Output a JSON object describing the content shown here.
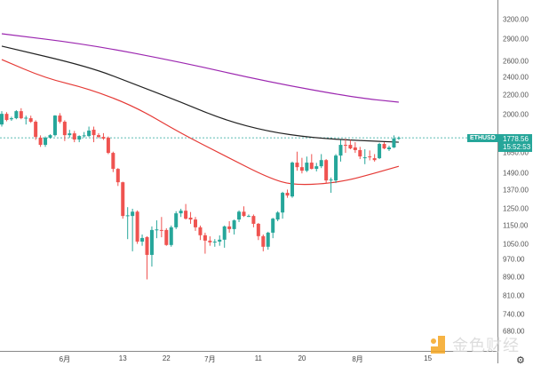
{
  "symbol": "ETHUSD",
  "last_price": "1778.56",
  "countdown": "15:52:53",
  "watermark": "金色财经",
  "settings_icon": "gear-icon",
  "colors": {
    "up": "#26a69a",
    "down": "#ef5350",
    "ma_purple": "#9c27b0",
    "ma_black": "#222222",
    "ma_red": "#e53935",
    "price_line": "#26a69a"
  },
  "chart_data": {
    "type": "candlestick",
    "title": "ETHUSD",
    "y_scale": "log",
    "y_ticks": [
      "3200.00",
      "2900.00",
      "2600.00",
      "2400.00",
      "2200.00",
      "2000.00",
      "1650.00",
      "1490.00",
      "1370.00",
      "1250.00",
      "1150.00",
      "1050.00",
      "970.00",
      "890.00",
      "810.00",
      "740.00",
      "680.00"
    ],
    "x_ticks": [
      {
        "label": "6月",
        "index": 13
      },
      {
        "label": "13",
        "index": 25
      },
      {
        "label": "22",
        "index": 34
      },
      {
        "label": "7月",
        "index": 43
      },
      {
        "label": "11",
        "index": 53
      },
      {
        "label": "20",
        "index": 62
      },
      {
        "label": "8月",
        "index": 73.5
      },
      {
        "label": "15",
        "index": 88
      }
    ],
    "last_price": 1778.56,
    "ohlc": [
      [
        1900,
        2030,
        1880,
        2003
      ],
      [
        2003,
        2020,
        1930,
        1943
      ],
      [
        1950,
        1975,
        1935,
        1960
      ],
      [
        1960,
        2040,
        1950,
        2030
      ],
      [
        2030,
        2060,
        1950,
        1960
      ],
      [
        1960,
        1985,
        1900,
        1965
      ],
      [
        1960,
        1985,
        1915,
        1926
      ],
      [
        1926,
        1940,
        1760,
        1786
      ],
      [
        1779,
        1800,
        1700,
        1717
      ],
      [
        1717,
        1790,
        1700,
        1779
      ],
      [
        1779,
        1810,
        1770,
        1802
      ],
      [
        1802,
        1990,
        1790,
        1986
      ],
      [
        1986,
        2010,
        1910,
        1926
      ],
      [
        1926,
        1940,
        1750,
        1802
      ],
      [
        1802,
        1850,
        1780,
        1818
      ],
      [
        1818,
        1840,
        1740,
        1763
      ],
      [
        1763,
        1800,
        1740,
        1794
      ],
      [
        1794,
        1830,
        1780,
        1800
      ],
      [
        1794,
        1880,
        1785,
        1843
      ],
      [
        1851,
        1880,
        1740,
        1802
      ],
      [
        1802,
        1820,
        1775,
        1786
      ],
      [
        1786,
        1820,
        1760,
        1771
      ],
      [
        1779,
        1790,
        1640,
        1650
      ],
      [
        1650,
        1660,
        1500,
        1524
      ],
      [
        1524,
        1530,
        1400,
        1426
      ],
      [
        1426,
        1430,
        1190,
        1206
      ],
      [
        1206,
        1260,
        1075,
        1210
      ],
      [
        1206,
        1250,
        1012,
        1232
      ],
      [
        1232,
        1240,
        1050,
        1062
      ],
      [
        1062,
        1100,
        1040,
        1081
      ],
      [
        1086,
        1090,
        880,
        994
      ],
      [
        994,
        1145,
        938,
        1125
      ],
      [
        1125,
        1180,
        1080,
        1128
      ],
      [
        1125,
        1200,
        1085,
        1122
      ],
      [
        1125,
        1135,
        1040,
        1044
      ],
      [
        1044,
        1150,
        1035,
        1140
      ],
      [
        1140,
        1235,
        1130,
        1222
      ],
      [
        1222,
        1250,
        1200,
        1238
      ],
      [
        1238,
        1280,
        1185,
        1190
      ],
      [
        1196,
        1230,
        1160,
        1185
      ],
      [
        1185,
        1200,
        1120,
        1140
      ],
      [
        1140,
        1150,
        1070,
        1096
      ],
      [
        1096,
        1110,
        1000,
        1067
      ],
      [
        1067,
        1090,
        1040,
        1058
      ],
      [
        1058,
        1075,
        1035,
        1062
      ],
      [
        1062,
        1095,
        1040,
        1072
      ],
      [
        1072,
        1150,
        1030,
        1145
      ],
      [
        1145,
        1175,
        1110,
        1130
      ],
      [
        1130,
        1185,
        1100,
        1180
      ],
      [
        1185,
        1240,
        1170,
        1232
      ],
      [
        1232,
        1265,
        1200,
        1206
      ],
      [
        1206,
        1215,
        1200,
        1206
      ],
      [
        1206,
        1215,
        1140,
        1160
      ],
      [
        1160,
        1165,
        1070,
        1091
      ],
      [
        1091,
        1100,
        1012,
        1035
      ],
      [
        1035,
        1115,
        1020,
        1110
      ],
      [
        1110,
        1195,
        1080,
        1190
      ],
      [
        1185,
        1235,
        1175,
        1227
      ],
      [
        1227,
        1360,
        1190,
        1353
      ],
      [
        1353,
        1375,
        1320,
        1335
      ],
      [
        1329,
        1580,
        1320,
        1572
      ],
      [
        1572,
        1660,
        1510,
        1537
      ],
      [
        1537,
        1610,
        1490,
        1510
      ],
      [
        1510,
        1620,
        1500,
        1572
      ],
      [
        1572,
        1640,
        1520,
        1524
      ],
      [
        1524,
        1570,
        1505,
        1544
      ],
      [
        1544,
        1640,
        1530,
        1592
      ],
      [
        1592,
        1600,
        1420,
        1439
      ],
      [
        1439,
        1460,
        1353,
        1445
      ],
      [
        1439,
        1640,
        1420,
        1628
      ],
      [
        1628,
        1760,
        1580,
        1717
      ],
      [
        1717,
        1770,
        1650,
        1710
      ],
      [
        1717,
        1760,
        1680,
        1687
      ],
      [
        1695,
        1740,
        1650,
        1673
      ],
      [
        1673,
        1700,
        1600,
        1621
      ],
      [
        1614,
        1680,
        1560,
        1614
      ],
      [
        1621,
        1670,
        1590,
        1614
      ],
      [
        1607,
        1640,
        1580,
        1592
      ],
      [
        1607,
        1735,
        1600,
        1725
      ],
      [
        1725,
        1740,
        1680,
        1687
      ],
      [
        1680,
        1710,
        1665,
        1695
      ],
      [
        1695,
        1800,
        1690,
        1771
      ],
      [
        1771,
        1790,
        1760,
        1778
      ]
    ],
    "moving_averages": [
      {
        "name": "MA purple",
        "color": "#9c27b0",
        "points": [
          [
            0,
            2982
          ],
          [
            18,
            2826
          ],
          [
            37,
            2589
          ],
          [
            55,
            2349
          ],
          [
            73,
            2171
          ],
          [
            82,
            2123
          ]
        ]
      },
      {
        "name": "MA black",
        "color": "#222222",
        "points": [
          [
            0,
            2804
          ],
          [
            18,
            2532
          ],
          [
            27.5,
            2319
          ],
          [
            37,
            2123
          ],
          [
            46,
            1943
          ],
          [
            55,
            1835
          ],
          [
            64,
            1779
          ],
          [
            73,
            1756
          ],
          [
            82,
            1740
          ]
        ]
      },
      {
        "name": "MA red",
        "color": "#e53935",
        "points": [
          [
            0,
            2623
          ],
          [
            9,
            2392
          ],
          [
            18,
            2268
          ],
          [
            27.5,
            2078
          ],
          [
            37,
            1818
          ],
          [
            46,
            1628
          ],
          [
            55,
            1458
          ],
          [
            60.5,
            1402
          ],
          [
            70,
            1426
          ],
          [
            77,
            1491
          ],
          [
            82,
            1544
          ]
        ]
      }
    ]
  }
}
